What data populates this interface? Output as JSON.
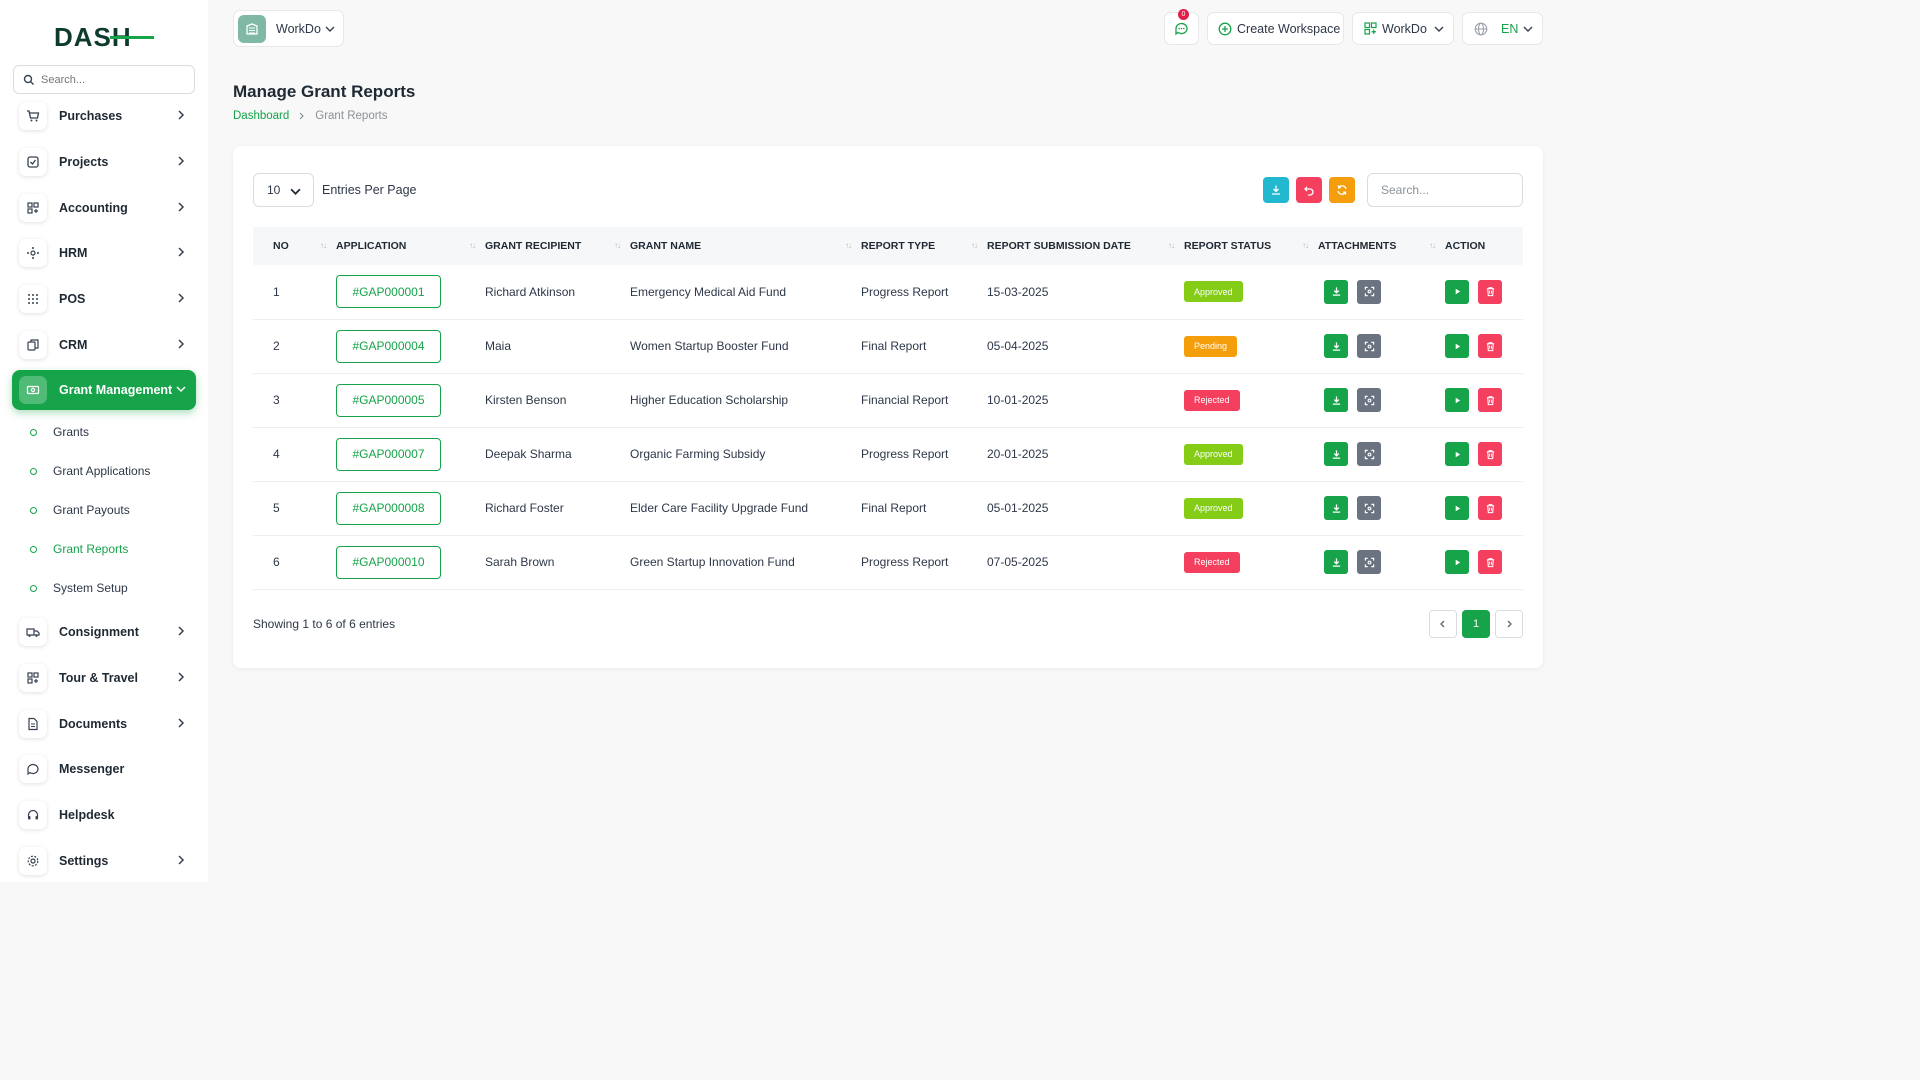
{
  "sidebar": {
    "logo_text": "DASH",
    "search_placeholder": "Search...",
    "items": [
      {
        "label": "Purchases",
        "icon": "cart-icon"
      },
      {
        "label": "Projects",
        "icon": "checkbox-icon"
      },
      {
        "label": "Accounting",
        "icon": "grid-icon"
      },
      {
        "label": "HRM",
        "icon": "users-icon"
      },
      {
        "label": "POS",
        "icon": "dots-grid-icon"
      },
      {
        "label": "CRM",
        "icon": "layers-icon"
      },
      {
        "label": "Grant Management",
        "icon": "cash-icon"
      },
      {
        "label": "Consignment",
        "icon": "truck-icon"
      },
      {
        "label": "Tour & Travel",
        "icon": "grid-icon"
      },
      {
        "label": "Documents",
        "icon": "document-icon"
      },
      {
        "label": "Messenger",
        "icon": "chat-icon"
      },
      {
        "label": "Helpdesk",
        "icon": "headset-icon"
      },
      {
        "label": "Settings",
        "icon": "gear-icon"
      }
    ],
    "subitems": [
      {
        "label": "Grants"
      },
      {
        "label": "Grant Applications"
      },
      {
        "label": "Grant Payouts"
      },
      {
        "label": "Grant Reports"
      },
      {
        "label": "System Setup"
      }
    ]
  },
  "topbar": {
    "workspace": "WorkDo",
    "notification_count": "0",
    "create_workspace": "Create Workspace",
    "workspace_switch": "WorkDo",
    "language": "EN"
  },
  "page": {
    "title": "Manage Grant Reports",
    "breadcrumb": [
      "Dashboard",
      "Grant Reports"
    ]
  },
  "table_controls": {
    "per_page_value": "10",
    "per_page_label": "Entries Per Page",
    "search_placeholder": "Search..."
  },
  "table": {
    "headers": [
      "NO",
      "APPLICATION",
      "GRANT RECIPIENT",
      "GRANT NAME",
      "REPORT TYPE",
      "REPORT SUBMISSION DATE",
      "REPORT STATUS",
      "ATTACHMENTS",
      "ACTION"
    ],
    "rows": [
      {
        "no": "1",
        "application": "#GAP000001",
        "recipient": "Richard Atkinson",
        "grant_name": "Emergency Medical Aid Fund",
        "report_type": "Progress Report",
        "date": "15-03-2025",
        "status": "Approved"
      },
      {
        "no": "2",
        "application": "#GAP000004",
        "recipient": "Maia",
        "grant_name": "Women Startup Booster Fund",
        "report_type": "Final Report",
        "date": "05-04-2025",
        "status": "Pending"
      },
      {
        "no": "3",
        "application": "#GAP000005",
        "recipient": "Kirsten Benson",
        "grant_name": "Higher Education Scholarship",
        "report_type": "Financial Report",
        "date": "10-01-2025",
        "status": "Rejected"
      },
      {
        "no": "4",
        "application": "#GAP000007",
        "recipient": "Deepak Sharma",
        "grant_name": "Organic Farming Subsidy",
        "report_type": "Progress Report",
        "date": "20-01-2025",
        "status": "Approved"
      },
      {
        "no": "5",
        "application": "#GAP000008",
        "recipient": "Richard Foster",
        "grant_name": "Elder Care Facility Upgrade Fund",
        "report_type": "Final Report",
        "date": "05-01-2025",
        "status": "Approved"
      },
      {
        "no": "6",
        "application": "#GAP000010",
        "recipient": "Sarah Brown",
        "grant_name": "Green Startup Innovation Fund",
        "report_type": "Progress Report",
        "date": "07-05-2025",
        "status": "Rejected"
      }
    ]
  },
  "footer": {
    "showing": "Showing 1 to 6 of 6 entries",
    "current_page": "1"
  },
  "colors": {
    "brand": "#16a34a",
    "approved": "#84cc16",
    "pending": "#f59e0b",
    "rejected": "#f43f5e",
    "download_btn": "#16a34a",
    "view_btn": "#6b7280",
    "delete_btn": "#f43f5e",
    "export_btn": "#22b8cf",
    "reset_btn": "#f43f5e",
    "refresh_btn": "#f59e0b"
  }
}
